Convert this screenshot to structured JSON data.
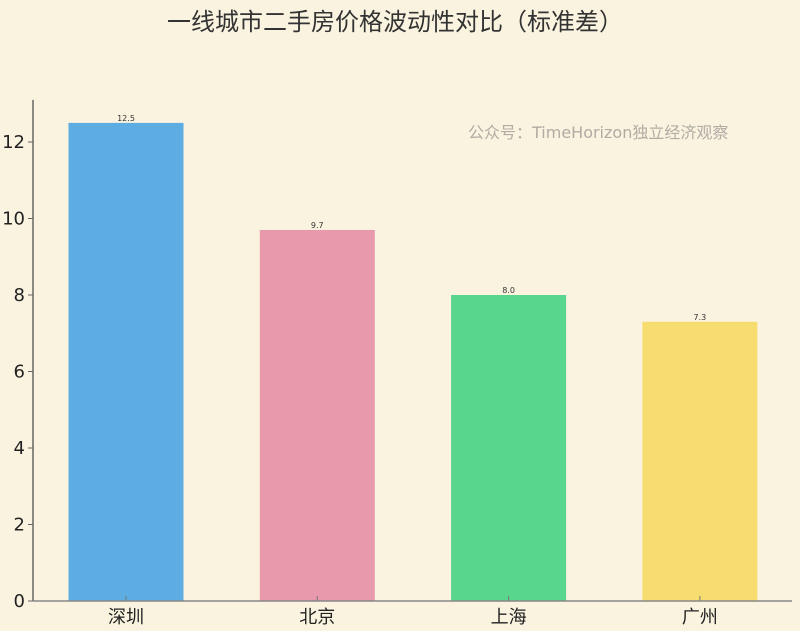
{
  "chart_data": {
    "type": "bar",
    "title": "一线城市二手房价格波动性对比（标准差）",
    "xlabel": "",
    "ylabel": "",
    "categories": [
      "深圳",
      "北京",
      "上海",
      "广州"
    ],
    "values": [
      12.5,
      9.7,
      8.0,
      7.3
    ],
    "data_labels": [
      "12.5",
      "9.7",
      "8.0",
      "7.3"
    ],
    "colors": [
      "#5dade2",
      "#e899ab",
      "#58d68d",
      "#f7dc6f"
    ],
    "ylim": [
      0,
      13.1
    ],
    "yticks": [
      0,
      2,
      4,
      6,
      8,
      10,
      12
    ],
    "grid": false,
    "annotation": "公众号：TimeHorizon独立经济观察"
  }
}
